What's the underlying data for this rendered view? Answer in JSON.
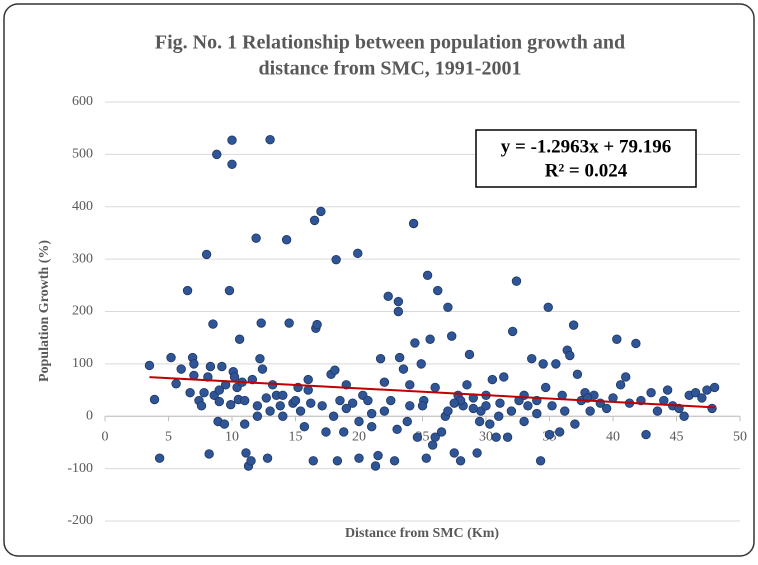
{
  "chart_data": {
    "type": "scatter",
    "title": "Fig. No. 1 Relationship between population growth and",
    "subtitle": "distance from SMC, 1991-2001",
    "x_label": "Distance from SMC (Km)",
    "y_label": "Population Growth (%)",
    "xlim": [
      0,
      50
    ],
    "xticks": [
      0,
      5,
      10,
      15,
      20,
      25,
      30,
      35,
      40,
      45,
      50
    ],
    "ylim": [
      -200,
      600
    ],
    "yticks": [
      -200,
      -100,
      0,
      100,
      200,
      300,
      400,
      500,
      600
    ],
    "grid": true,
    "color": "#2f5597",
    "x": [
      3.5,
      3.9,
      4.3,
      5.2,
      5.6,
      6,
      6.5,
      6.7,
      6.9,
      7,
      7,
      7.4,
      7.6,
      7.8,
      8,
      8.1,
      8.2,
      8.3,
      8.5,
      8.6,
      8.8,
      8.9,
      9,
      9.2,
      9.4,
      9.5,
      9.8,
      9.9,
      10,
      10,
      10.1,
      10.2,
      10.4,
      10.5,
      10.6,
      10.8,
      11,
      11.1,
      11.3,
      11.5,
      11.6,
      11.9,
      12,
      12.2,
      12.3,
      12.4,
      12.7,
      12.8,
      13,
      13.2,
      13.5,
      13.8,
      14,
      14.3,
      14.5,
      14.8,
      15.2,
      15.4,
      15.7,
      16,
      16.2,
      16.4,
      16.5,
      16.6,
      16.7,
      17,
      17.1,
      17.4,
      17.8,
      18.1,
      18.2,
      18.3,
      18.5,
      18.8,
      19,
      19.5,
      19.9,
      20,
      20.3,
      20.7,
      21,
      21.3,
      21.5,
      21.7,
      22,
      22.3,
      22.5,
      22.8,
      23.1,
      23.1,
      23.2,
      23.5,
      23.8,
      24,
      24.3,
      24.4,
      24.6,
      24.9,
      25.1,
      25.3,
      25.4,
      25.6,
      25.8,
      26,
      26.2,
      26.5,
      26.8,
      27,
      27.3,
      27.5,
      27.8,
      28,
      28.2,
      28.5,
      28.7,
      29,
      29.3,
      29.6,
      30,
      30.3,
      30.5,
      30.8,
      31.1,
      31.4,
      31.7,
      32.1,
      32.4,
      32.6,
      33,
      33.3,
      33.6,
      34,
      34.3,
      34.5,
      34.7,
      34.9,
      35.2,
      35.5,
      35.8,
      36.2,
      36.4,
      36.6,
      36.9,
      37.2,
      37.5,
      37.8,
      38.2,
      38.5,
      39,
      39.5,
      40,
      40.3,
      40.6,
      41,
      41.3,
      41.8,
      42.2,
      42.6,
      43,
      43.5,
      44,
      44.3,
      44.7,
      45.2,
      45.6,
      46,
      46.5,
      47,
      47.4,
      47.8,
      48,
      15,
      18,
      20,
      22,
      25,
      27,
      29,
      31,
      33,
      12,
      14,
      26,
      28,
      19,
      24,
      30,
      32,
      35,
      36,
      38,
      11,
      9,
      13,
      16,
      21,
      23,
      27.5,
      29.5,
      34,
      37
    ],
    "values": [
      97,
      32,
      -80,
      112,
      62,
      90,
      240,
      45,
      112,
      100,
      78,
      30,
      20,
      45,
      309,
      75,
      -72,
      95,
      176,
      40,
      500,
      -10,
      28,
      95,
      -15,
      60,
      240,
      22,
      527,
      481,
      85,
      75,
      55,
      32,
      147,
      65,
      -15,
      -70,
      -95,
      -85,
      70,
      340,
      20,
      110,
      178,
      90,
      35,
      -80,
      528,
      60,
      40,
      20,
      0,
      337,
      178,
      25,
      55,
      10,
      -20,
      70,
      25,
      -85,
      374,
      168,
      175,
      391,
      20,
      -30,
      80,
      88,
      299,
      -85,
      30,
      -30,
      60,
      25,
      311,
      -80,
      40,
      30,
      -20,
      -95,
      -75,
      110,
      65,
      229,
      30,
      -85,
      219,
      200,
      112,
      90,
      -10,
      20,
      368,
      140,
      -40,
      100,
      30,
      -80,
      269,
      147,
      -55,
      55,
      240,
      -30,
      0,
      208,
      153,
      -70,
      40,
      -85,
      20,
      60,
      118,
      35,
      -70,
      10,
      40,
      -15,
      70,
      -40,
      25,
      75,
      -40,
      162,
      258,
      30,
      -10,
      20,
      110,
      5,
      -85,
      100,
      55,
      208,
      20,
      100,
      -30,
      10,
      126,
      116,
      174,
      80,
      30,
      45,
      10,
      40,
      25,
      15,
      35,
      147,
      60,
      75,
      25,
      139,
      30,
      -35,
      45,
      10,
      30,
      50,
      20,
      15,
      0,
      40,
      45,
      35,
      50,
      15,
      55,
      30,
      0,
      -10,
      10,
      20,
      10,
      15,
      0,
      40,
      0,
      40,
      -40,
      30,
      15,
      60,
      20,
      10,
      -35,
      40,
      35,
      30,
      50,
      10,
      50,
      5,
      -25,
      25,
      -10,
      30,
      -15
    ],
    "trendline": {
      "slope": -1.2963,
      "intercept": 79.196,
      "color": "#c00000",
      "equation": "y = -1.2963x + 79.196",
      "r_squared": "R² = 0.024"
    }
  }
}
